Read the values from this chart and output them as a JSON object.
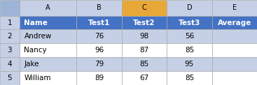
{
  "col_names": [
    "",
    "A",
    "B",
    "C",
    "D",
    "E"
  ],
  "row_numbers": [
    "1",
    "2",
    "3",
    "4",
    "5"
  ],
  "headers": [
    "Name",
    "Test1",
    "Test2",
    "Test3",
    "Average"
  ],
  "rows": [
    [
      "Andrew",
      "76",
      "98",
      "56",
      ""
    ],
    [
      "Nancy",
      "96",
      "87",
      "85",
      ""
    ],
    [
      "Jake",
      "79",
      "85",
      "95",
      ""
    ],
    [
      "William",
      "89",
      "67",
      "85",
      ""
    ]
  ],
  "header_bg": "#4472C4",
  "header_fg": "#FFFFFF",
  "row_bg_even": "#C5D0E6",
  "row_bg_odd": "#FFFFFF",
  "col_index_bg": "#C5D0E6",
  "col_index_selected_bg": "#E8A838",
  "row_index_bg": "#C5D0E6",
  "grid_color": "#AAAAAA",
  "corner_bg": "#9DB3D8",
  "selected_col": 2,
  "fig_width": 3.67,
  "fig_height": 1.22,
  "dpi": 100
}
